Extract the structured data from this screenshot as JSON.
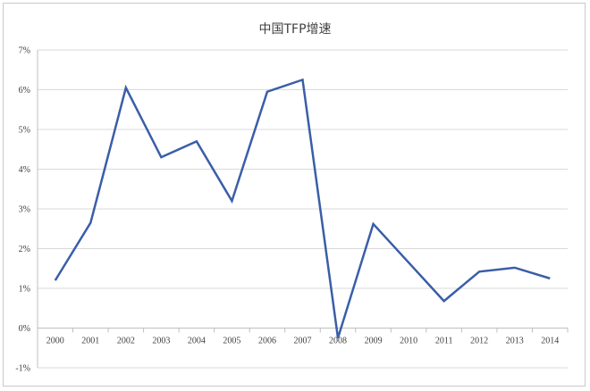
{
  "chart_data": {
    "type": "line",
    "title": "中国TFP增速",
    "xlabel": "",
    "ylabel": "",
    "categories": [
      "2000",
      "2001",
      "2002",
      "2003",
      "2004",
      "2005",
      "2006",
      "2007",
      "2008",
      "2009",
      "2010",
      "2011",
      "2012",
      "2013",
      "2014"
    ],
    "series": [
      {
        "values": [
          1.2,
          2.65,
          6.05,
          4.3,
          4.7,
          3.2,
          5.95,
          6.25,
          -0.25,
          2.62,
          1.65,
          0.68,
          1.42,
          1.52,
          1.25
        ]
      }
    ],
    "ylim": [
      -1,
      7
    ],
    "yticks": [
      -1,
      0,
      1,
      2,
      3,
      4,
      5,
      6,
      7
    ],
    "ytick_labels": [
      "-1%",
      "0%",
      "1%",
      "2%",
      "3%",
      "4%",
      "5%",
      "6%",
      "7%"
    ],
    "grid": true,
    "legend": "none",
    "colors": {
      "line": "#3a5ea8",
      "grid": "#d9d9d9"
    }
  }
}
